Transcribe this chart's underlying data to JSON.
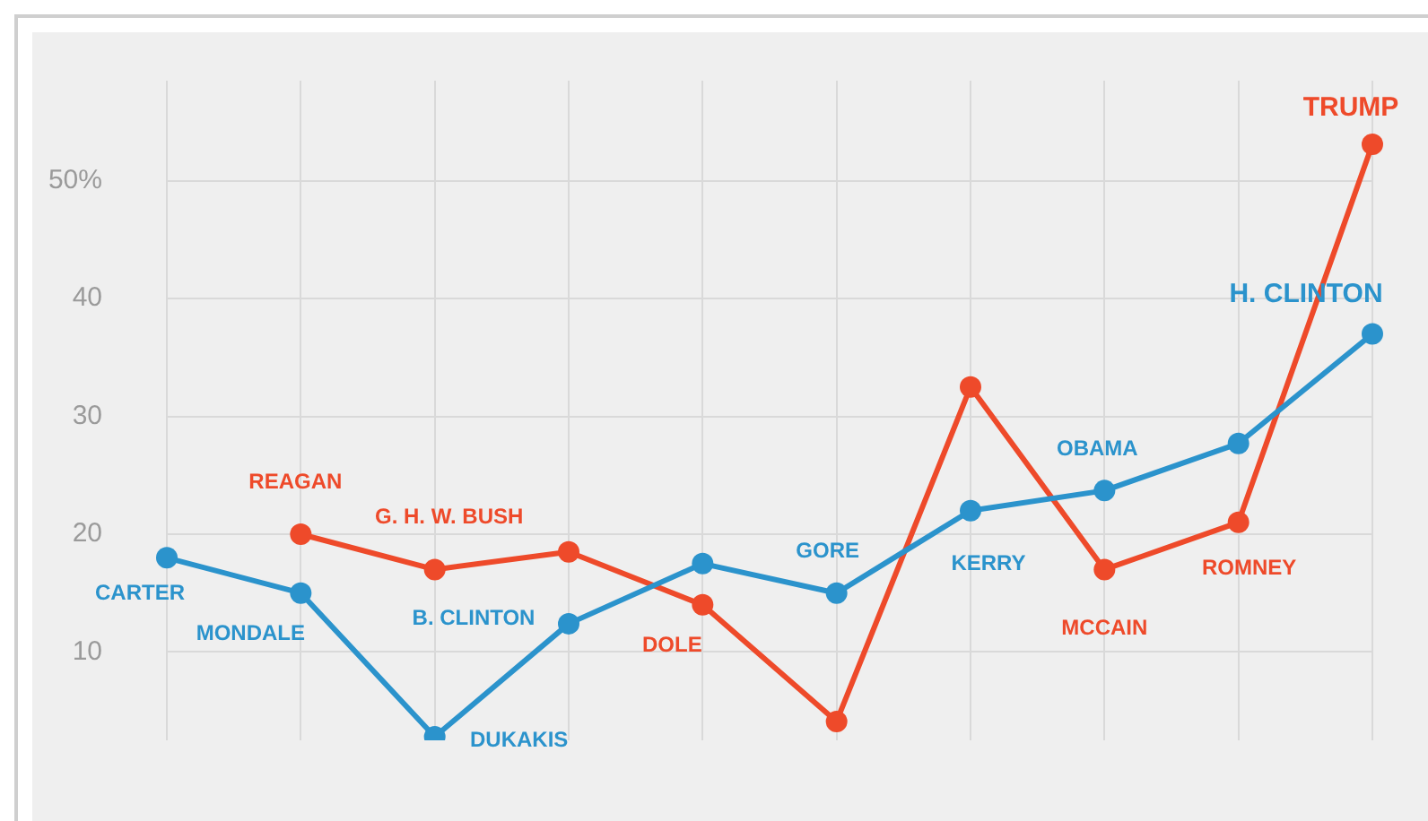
{
  "chart_data": {
    "type": "line",
    "categories": [
      null,
      null,
      null,
      null,
      null,
      null,
      null,
      null,
      null,
      null
    ],
    "series": [
      {
        "color": "#2b93cc",
        "values": [
          18,
          15,
          2.8,
          12.4,
          17.5,
          15,
          22,
          23.7,
          27.7,
          37
        ],
        "value_labels": [
          "CARTER",
          "MONDALE",
          "DUKAKIS",
          "B. CLINTON",
          null,
          "GORE",
          "KERRY",
          "OBAMA",
          null,
          "H. CLINTON"
        ]
      },
      {
        "color": "#ee4a2a",
        "values": [
          null,
          20,
          17,
          18.5,
          14,
          4.1,
          32.5,
          17,
          21,
          53.1
        ],
        "value_labels": [
          null,
          "REAGAN",
          "G. H. W. BUSH",
          null,
          "DOLE",
          null,
          null,
          "MCCAIN",
          "ROMNEY",
          "TRUMP"
        ]
      }
    ],
    "ylim": [
      2.5,
      58.5
    ],
    "yticks": [
      10,
      20,
      30,
      40,
      {
        "value": 50,
        "label": "50%"
      }
    ],
    "grid": true,
    "marker": "circle",
    "line_style": "solid",
    "legend": false,
    "tick_labels": "y"
  }
}
